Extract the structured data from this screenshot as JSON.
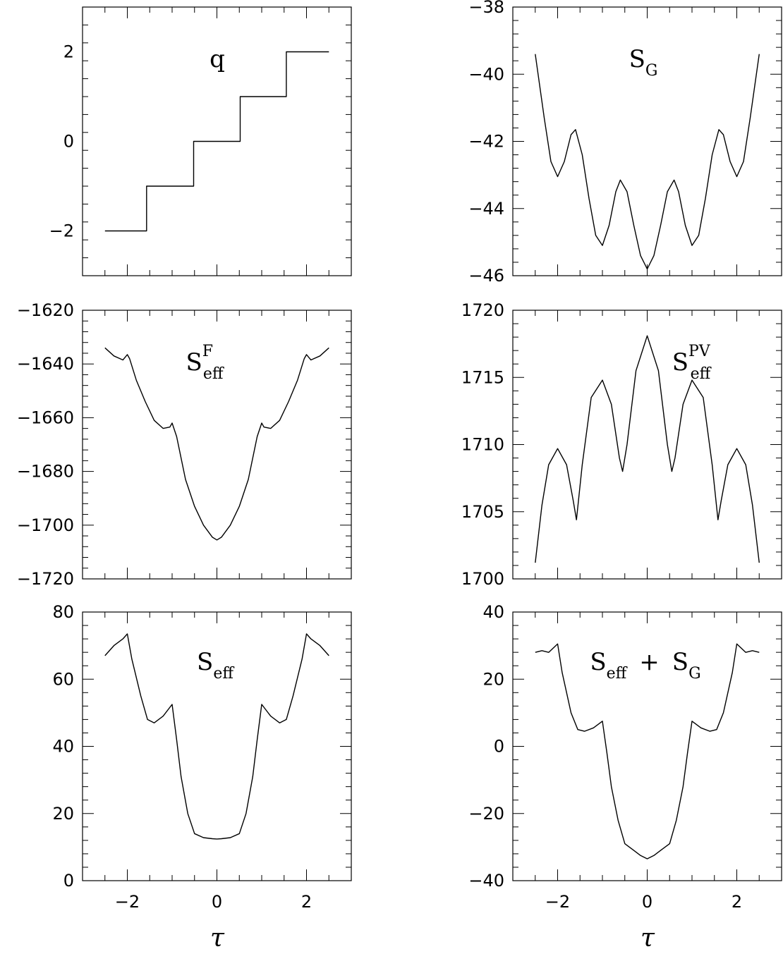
{
  "chart_data": [
    {
      "id": "q",
      "type": "line",
      "label": {
        "main": "q",
        "sub": "",
        "sup": ""
      },
      "xlim": [
        -3,
        3
      ],
      "ylim": [
        -3,
        3
      ],
      "xticks": [
        -2,
        0,
        2
      ],
      "xtick_labels": [],
      "yticks": [
        -2,
        0,
        2
      ],
      "ytick_labels": [
        "−2",
        "0",
        "2"
      ],
      "series": [
        {
          "x": [
            -2.5,
            -1.57,
            -1.57,
            -0.52,
            -0.52,
            0.52,
            0.52,
            1.55,
            1.55,
            2.5
          ],
          "y": [
            -2,
            -2,
            -1,
            -1,
            0,
            0,
            1,
            1,
            2,
            2
          ]
        }
      ]
    },
    {
      "id": "sg",
      "type": "line",
      "label": {
        "main": "S",
        "sub": "G",
        "sup": ""
      },
      "xlim": [
        -3,
        3
      ],
      "ylim": [
        -46,
        -38
      ],
      "xticks": [
        -2,
        0,
        2
      ],
      "xtick_labels": [],
      "yticks": [
        -46,
        -44,
        -42,
        -40,
        -38
      ],
      "ytick_labels": [
        "−46",
        "−44",
        "−42",
        "−40",
        "−38"
      ],
      "series": [
        {
          "x": [
            -2.5,
            -2.3,
            -2.15,
            -2.0,
            -1.85,
            -1.7,
            -1.6,
            -1.45,
            -1.3,
            -1.15,
            -1.0,
            -0.85,
            -0.7,
            -0.6,
            -0.45,
            -0.3,
            -0.15,
            0.0,
            0.15,
            0.3,
            0.45,
            0.6,
            0.7,
            0.85,
            1.0,
            1.15,
            1.3,
            1.45,
            1.6,
            1.7,
            1.85,
            2.0,
            2.15,
            2.3,
            2.5
          ],
          "y": [
            -39.4,
            -41.3,
            -42.6,
            -43.05,
            -42.6,
            -41.8,
            -41.65,
            -42.4,
            -43.7,
            -44.8,
            -45.1,
            -44.5,
            -43.5,
            -43.15,
            -43.5,
            -44.5,
            -45.4,
            -45.8,
            -45.4,
            -44.5,
            -43.5,
            -43.15,
            -43.5,
            -44.5,
            -45.1,
            -44.8,
            -43.7,
            -42.4,
            -41.65,
            -41.8,
            -42.6,
            -43.05,
            -42.6,
            -41.3,
            -39.4
          ]
        }
      ]
    },
    {
      "id": "seff_f",
      "type": "line",
      "label": {
        "main": "S",
        "sub": "eff",
        "sup": "F"
      },
      "xlim": [
        -3,
        3
      ],
      "ylim": [
        -1720,
        -1620
      ],
      "xticks": [
        -2,
        0,
        2
      ],
      "xtick_labels": [],
      "yticks": [
        -1720,
        -1700,
        -1680,
        -1660,
        -1640,
        -1620
      ],
      "ytick_labels": [
        "−1720",
        "−1700",
        "−1680",
        "−1660",
        "−1640",
        "−1620"
      ],
      "series": [
        {
          "x": [
            -2.5,
            -2.3,
            -2.1,
            -2.0,
            -1.95,
            -1.8,
            -1.6,
            -1.4,
            -1.2,
            -1.05,
            -1.0,
            -0.9,
            -0.7,
            -0.5,
            -0.3,
            -0.1,
            0.0,
            0.1,
            0.3,
            0.5,
            0.7,
            0.9,
            1.0,
            1.05,
            1.2,
            1.4,
            1.6,
            1.8,
            1.95,
            2.0,
            2.1,
            2.3,
            2.5
          ],
          "y": [
            -1634,
            -1637,
            -1638.5,
            -1636.5,
            -1638,
            -1646,
            -1654,
            -1661,
            -1664,
            -1663.5,
            -1662,
            -1667,
            -1683,
            -1693,
            -1700,
            -1704.5,
            -1705.5,
            -1704.5,
            -1700,
            -1693,
            -1683,
            -1667,
            -1662,
            -1663.5,
            -1664,
            -1661,
            -1654,
            -1646,
            -1638,
            -1636.5,
            -1638.5,
            -1637,
            -1634
          ]
        }
      ]
    },
    {
      "id": "seff_pv",
      "type": "line",
      "label": {
        "main": "S",
        "sub": "eff",
        "sup": "PV"
      },
      "xlim": [
        -3,
        3
      ],
      "ylim": [
        1700,
        1720
      ],
      "xticks": [
        -2,
        0,
        2
      ],
      "xtick_labels": [],
      "yticks": [
        1700,
        1705,
        1710,
        1715,
        1720
      ],
      "ytick_labels": [
        "1700",
        "1705",
        "1710",
        "1715",
        "1720"
      ],
      "series": [
        {
          "x": [
            -2.5,
            -2.35,
            -2.2,
            -2.0,
            -1.8,
            -1.65,
            -1.58,
            -1.45,
            -1.25,
            -1.0,
            -0.8,
            -0.62,
            -0.55,
            -0.45,
            -0.25,
            0.0,
            0.25,
            0.45,
            0.55,
            0.62,
            0.8,
            1.0,
            1.25,
            1.45,
            1.58,
            1.65,
            1.8,
            2.0,
            2.2,
            2.35,
            2.5
          ],
          "y": [
            1701.2,
            1705.5,
            1708.5,
            1709.7,
            1708.5,
            1705.8,
            1704.4,
            1708.5,
            1713.5,
            1714.8,
            1713,
            1709,
            1708,
            1710,
            1715.5,
            1718.1,
            1715.5,
            1710,
            1708,
            1709,
            1713,
            1714.8,
            1713.5,
            1708.5,
            1704.4,
            1705.8,
            1708.5,
            1709.7,
            1708.5,
            1705.5,
            1701.2
          ]
        }
      ]
    },
    {
      "id": "seff",
      "type": "line",
      "label": {
        "main": "S",
        "sub": "eff",
        "sup": ""
      },
      "xlim": [
        -3,
        3
      ],
      "ylim": [
        0,
        80
      ],
      "xticks": [
        -2,
        0,
        2
      ],
      "xtick_labels": [
        "−2",
        "0",
        "2"
      ],
      "yticks": [
        0,
        20,
        40,
        60,
        80
      ],
      "ytick_labels": [
        "0",
        "20",
        "40",
        "60",
        "80"
      ],
      "series": [
        {
          "x": [
            -2.5,
            -2.3,
            -2.1,
            -2.0,
            -1.9,
            -1.7,
            -1.55,
            -1.4,
            -1.2,
            -1.0,
            -0.9,
            -0.8,
            -0.65,
            -0.5,
            -0.3,
            -0.1,
            0.0,
            0.1,
            0.3,
            0.5,
            0.65,
            0.8,
            0.9,
            1.0,
            1.2,
            1.4,
            1.55,
            1.7,
            1.9,
            2.0,
            2.1,
            2.3,
            2.5
          ],
          "y": [
            67,
            70,
            72,
            73.5,
            66,
            55,
            48,
            47,
            49,
            52.5,
            42,
            31,
            20,
            14,
            12.8,
            12.5,
            12.4,
            12.5,
            12.8,
            14,
            20,
            31,
            42,
            52.5,
            49,
            47,
            48,
            55,
            66,
            73.5,
            72,
            70,
            67
          ]
        }
      ]
    },
    {
      "id": "seff_sg",
      "type": "line",
      "label": {
        "main": "S",
        "sub": "eff",
        "sup": "",
        "op": "+",
        "main2": "S",
        "sub2": "G"
      },
      "xlim": [
        -3,
        3
      ],
      "ylim": [
        -40,
        40
      ],
      "xticks": [
        -2,
        0,
        2
      ],
      "xtick_labels": [
        "−2",
        "0",
        "2"
      ],
      "yticks": [
        -40,
        -20,
        0,
        20,
        40
      ],
      "ytick_labels": [
        "−40",
        "−20",
        "0",
        "20",
        "40"
      ],
      "series": [
        {
          "x": [
            -2.5,
            -2.35,
            -2.2,
            -2.0,
            -1.9,
            -1.7,
            -1.55,
            -1.4,
            -1.2,
            -1.0,
            -0.9,
            -0.8,
            -0.65,
            -0.5,
            -0.3,
            -0.15,
            0.0,
            0.15,
            0.3,
            0.5,
            0.65,
            0.8,
            0.9,
            1.0,
            1.2,
            1.4,
            1.55,
            1.7,
            1.9,
            2.0,
            2.2,
            2.35,
            2.5
          ],
          "y": [
            28,
            28.5,
            28,
            30.5,
            22,
            10,
            5,
            4.5,
            5.5,
            7.5,
            -2,
            -12,
            -22,
            -29,
            -31,
            -32.5,
            -33.5,
            -32.5,
            -31,
            -29,
            -22,
            -12,
            -2,
            7.5,
            5.5,
            4.5,
            5,
            10,
            22,
            30.5,
            28,
            28.5,
            28
          ]
        }
      ]
    }
  ],
  "axes": {
    "x_title": "τ"
  }
}
